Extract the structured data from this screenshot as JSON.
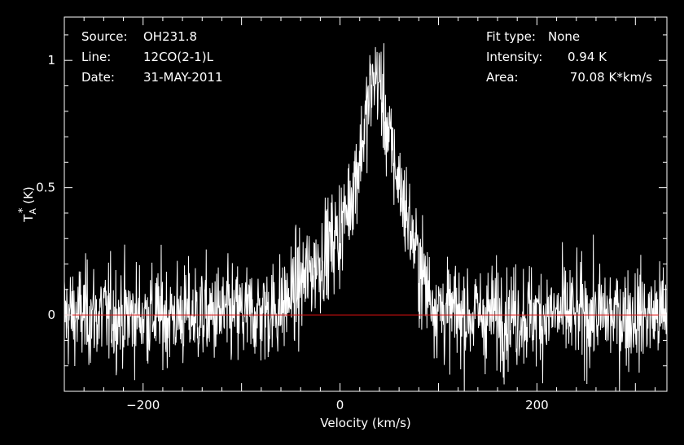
{
  "colors": {
    "background": "#000000",
    "foreground": "#ffffff",
    "baseline": "#e01010"
  },
  "info": {
    "source_label": "Source:",
    "source_value": "OH231.8",
    "line_label": "Line:",
    "line_value": "12CO(2-1)L",
    "date_label": "Date:",
    "date_value": "31-MAY-2011",
    "fit_label": "Fit type:",
    "fit_value": "None",
    "intensity_label": "Intensity:",
    "intensity_value": "0.94 K",
    "area_label": "Area:",
    "area_value": "70.08 K*km/s"
  },
  "chart_data": {
    "type": "line",
    "title": "",
    "xlabel": "Velocity (km/s)",
    "ylabel_main": "T",
    "ylabel_sub": "A",
    "ylabel_sup": "*",
    "ylabel_unit": " (K)",
    "xlim": [
      -280,
      332
    ],
    "ylim": [
      -0.3,
      1.17
    ],
    "xticks": [
      -200,
      0,
      200
    ],
    "xtick_labels": [
      "−200",
      "0",
      "200"
    ],
    "yticks": [
      0,
      0.5,
      1
    ],
    "ytick_labels": [
      "0",
      "0.5",
      "1"
    ],
    "baseline_y": 0,
    "grid": false,
    "series": [
      {
        "noise_rms": 0.1,
        "profile": {
          "x": [
            -280,
            -100,
            -80,
            -60,
            -40,
            -20,
            0,
            10,
            20,
            30,
            35,
            40,
            45,
            50,
            60,
            70,
            80,
            90,
            100,
            110,
            130,
            332
          ],
          "y": [
            0,
            0,
            0.01,
            0.03,
            0.12,
            0.22,
            0.33,
            0.45,
            0.62,
            0.85,
            0.94,
            0.92,
            0.8,
            0.68,
            0.52,
            0.36,
            0.2,
            0.09,
            0.03,
            0.01,
            0,
            0
          ]
        }
      }
    ]
  }
}
